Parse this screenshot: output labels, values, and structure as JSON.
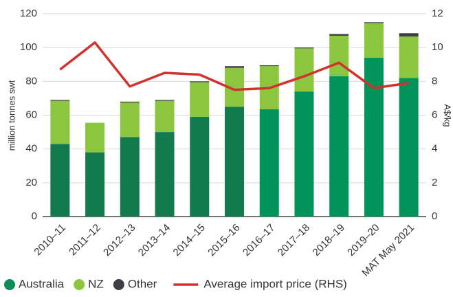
{
  "chart_data": {
    "type": "bar",
    "stacked": true,
    "categories": [
      "2010–11",
      "2011–12",
      "2012–13",
      "2013–14",
      "2014–15",
      "2015–16",
      "2016–17",
      "2017–18",
      "2018–19",
      "2019–20",
      "MAT May 2021"
    ],
    "series": [
      {
        "name": "Australia",
        "color": "#0e8c55",
        "colors": [
          "#137a4d",
          "#137a4d",
          "#137a4d",
          "#137a4d",
          "#137a4d",
          "#137a4d",
          "#00935a",
          "#00935a",
          "#00935a",
          "#00935a",
          "#00935a"
        ],
        "values": [
          43,
          38,
          47,
          50,
          59,
          65,
          63.5,
          74,
          83,
          94,
          82
        ]
      },
      {
        "name": "NZ",
        "color": "#8cc63f",
        "values": [
          25.5,
          17.5,
          20.5,
          18.5,
          20.5,
          23,
          25.5,
          25.5,
          24,
          20.5,
          24.5
        ]
      },
      {
        "name": "Other",
        "color": "#3d3f45",
        "values": [
          0.5,
          0,
          0.5,
          0.5,
          0.5,
          1,
          0.5,
          0.5,
          1,
          0.5,
          2
        ]
      },
      {
        "name": "Average import price (RHS)",
        "type": "line",
        "axis": "y2",
        "color": "#d2322d",
        "values": [
          8.7,
          10.3,
          7.7,
          8.5,
          8.4,
          7.5,
          7.6,
          8.3,
          9.1,
          7.6,
          7.9
        ]
      }
    ],
    "ylabel": "million tonnes swt",
    "y2label": "A$/kg",
    "ylim": [
      0,
      120
    ],
    "yticks": [
      0,
      20,
      40,
      60,
      80,
      100,
      120
    ],
    "y2lim": [
      0,
      12
    ],
    "y2ticks": [
      0,
      2,
      4,
      6,
      8,
      10,
      12
    ],
    "grid": true,
    "legend": "bottom"
  }
}
